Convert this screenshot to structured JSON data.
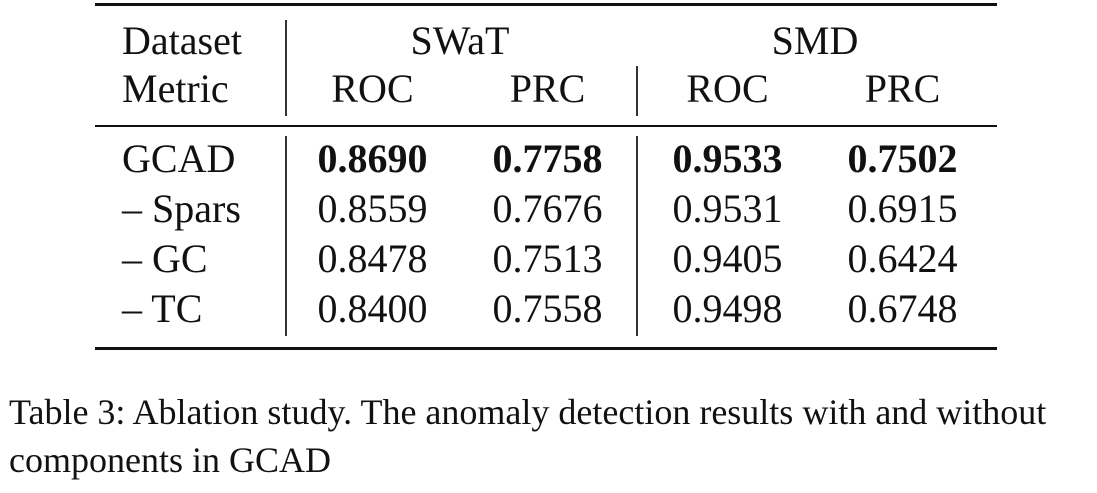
{
  "table": {
    "header": {
      "dataset_label": "Dataset",
      "metric_label": "Metric",
      "groups": [
        "SWaT",
        "SMD"
      ],
      "metrics": [
        "ROC",
        "PRC",
        "ROC",
        "PRC"
      ]
    },
    "rows": [
      {
        "label": "GCAD",
        "values": [
          "0.8690",
          "0.7758",
          "0.9533",
          "0.7502"
        ],
        "bold": true
      },
      {
        "label": "– Spars",
        "values": [
          "0.8559",
          "0.7676",
          "0.9531",
          "0.6915"
        ],
        "bold": false
      },
      {
        "label": "– GC",
        "values": [
          "0.8478",
          "0.7513",
          "0.9405",
          "0.6424"
        ],
        "bold": false
      },
      {
        "label": "– TC",
        "values": [
          "0.8400",
          "0.7558",
          "0.9498",
          "0.6748"
        ],
        "bold": false
      }
    ]
  },
  "caption": "Table 3: Ablation study. The anomaly detection results with and without components in GCAD"
}
